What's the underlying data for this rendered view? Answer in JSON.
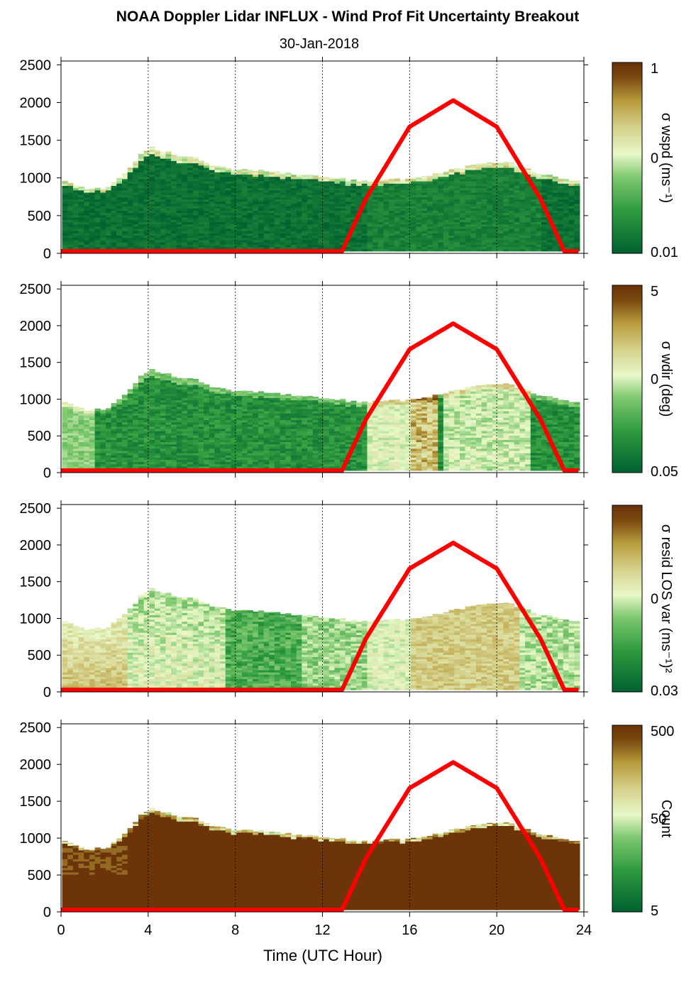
{
  "title": "NOAA Doppler Lidar INFLUX - Wind Prof Fit Uncertainty Breakout",
  "subtitle": "30-Jan-2018",
  "xlabel": "Time (UTC Hour)",
  "colors": {
    "sun_curve": "#ff0000",
    "colormap": [
      "#006030",
      "#2e9a3e",
      "#7fc870",
      "#e8f8c8",
      "#d4d08a",
      "#b89a3c",
      "#7a4a10",
      "#6a3108"
    ]
  },
  "chart_data": [
    {
      "type": "heatmap",
      "panel": "wspd",
      "xlim": [
        0,
        24
      ],
      "ylim": [
        0,
        2550
      ],
      "x_ticks": [
        "0",
        "4",
        "8",
        "12",
        "16",
        "20",
        "24"
      ],
      "y_ticks": [
        "0",
        "500",
        "1000",
        "1500",
        "2000",
        "2500"
      ],
      "grid": "vertical dotted at 4-hour intervals",
      "colorbar": {
        "label": "σ wspd (ms⁻¹)",
        "ticks": [
          "1",
          "0",
          "0.01"
        ],
        "scale": "log"
      },
      "data_top_m": [
        [
          0,
          950
        ],
        [
          1,
          850
        ],
        [
          2,
          870
        ],
        [
          3,
          1100
        ],
        [
          3.5,
          1300
        ],
        [
          4,
          1400
        ],
        [
          5,
          1320
        ],
        [
          6,
          1270
        ],
        [
          7,
          1150
        ],
        [
          8,
          1100
        ],
        [
          10,
          1080
        ],
        [
          12,
          1000
        ],
        [
          14,
          960
        ],
        [
          16,
          1000
        ],
        [
          18,
          1120
        ],
        [
          20,
          1220
        ],
        [
          21,
          1150
        ],
        [
          22,
          1050
        ],
        [
          23.8,
          950
        ]
      ],
      "sun_elevation_curve": [
        [
          0,
          0
        ],
        [
          12.9,
          0
        ],
        [
          14,
          700
        ],
        [
          16,
          1650
        ],
        [
          18,
          2000
        ],
        [
          20,
          1650
        ],
        [
          22,
          700
        ],
        [
          23.1,
          0
        ],
        [
          23.8,
          0
        ]
      ]
    },
    {
      "type": "heatmap",
      "panel": "wdir",
      "xlim": [
        0,
        24
      ],
      "ylim": [
        0,
        2550
      ],
      "x_ticks": [
        "0",
        "4",
        "8",
        "12",
        "16",
        "20",
        "24"
      ],
      "y_ticks": [
        "0",
        "500",
        "1000",
        "1500",
        "2000",
        "2500"
      ],
      "grid": "vertical dotted at 4-hour intervals",
      "colorbar": {
        "label": "σ wdir (deg)",
        "ticks": [
          "5",
          "0",
          "0.05"
        ],
        "scale": "log"
      },
      "data_top_m": [
        [
          0,
          950
        ],
        [
          1,
          850
        ],
        [
          2,
          870
        ],
        [
          3,
          1100
        ],
        [
          3.5,
          1300
        ],
        [
          4,
          1400
        ],
        [
          5,
          1320
        ],
        [
          6,
          1270
        ],
        [
          7,
          1150
        ],
        [
          8,
          1100
        ],
        [
          10,
          1080
        ],
        [
          12,
          1000
        ],
        [
          14,
          960
        ],
        [
          16,
          1000
        ],
        [
          18,
          1120
        ],
        [
          20,
          1220
        ],
        [
          21,
          1150
        ],
        [
          22,
          1050
        ],
        [
          23.8,
          950
        ]
      ],
      "sun_elevation_curve": [
        [
          0,
          0
        ],
        [
          12.9,
          0
        ],
        [
          14,
          700
        ],
        [
          16,
          1650
        ],
        [
          18,
          2000
        ],
        [
          20,
          1650
        ],
        [
          22,
          700
        ],
        [
          23.1,
          0
        ],
        [
          23.8,
          0
        ]
      ]
    },
    {
      "type": "heatmap",
      "panel": "resid",
      "xlim": [
        0,
        24
      ],
      "ylim": [
        0,
        2550
      ],
      "x_ticks": [
        "0",
        "4",
        "8",
        "12",
        "16",
        "20",
        "24"
      ],
      "y_ticks": [
        "0",
        "500",
        "1000",
        "1500",
        "2000",
        "2500"
      ],
      "grid": "vertical dotted at 4-hour intervals",
      "colorbar": {
        "label": "σ resid LOS var (ms⁻¹)²",
        "ticks": [
          "0",
          "0.03"
        ],
        "scale": "log"
      },
      "data_top_m": [
        [
          0,
          950
        ],
        [
          1,
          850
        ],
        [
          2,
          870
        ],
        [
          3,
          1100
        ],
        [
          3.5,
          1300
        ],
        [
          4,
          1400
        ],
        [
          5,
          1320
        ],
        [
          6,
          1270
        ],
        [
          7,
          1150
        ],
        [
          8,
          1100
        ],
        [
          10,
          1080
        ],
        [
          12,
          1000
        ],
        [
          14,
          960
        ],
        [
          16,
          1000
        ],
        [
          18,
          1120
        ],
        [
          20,
          1220
        ],
        [
          21,
          1150
        ],
        [
          22,
          1050
        ],
        [
          23.8,
          950
        ]
      ],
      "sun_elevation_curve": [
        [
          0,
          0
        ],
        [
          12.9,
          0
        ],
        [
          14,
          700
        ],
        [
          16,
          1650
        ],
        [
          18,
          2000
        ],
        [
          20,
          1650
        ],
        [
          22,
          700
        ],
        [
          23.1,
          0
        ],
        [
          23.8,
          0
        ]
      ]
    },
    {
      "type": "heatmap",
      "panel": "count",
      "xlim": [
        0,
        24
      ],
      "ylim": [
        0,
        2550
      ],
      "x_ticks": [
        "0",
        "4",
        "8",
        "12",
        "16",
        "20",
        "24"
      ],
      "y_ticks": [
        "0",
        "500",
        "1000",
        "1500",
        "2000",
        "2500"
      ],
      "grid": "vertical dotted at 4-hour intervals",
      "colorbar": {
        "label": "Count",
        "ticks": [
          "500",
          "50",
          "5"
        ],
        "scale": "log"
      },
      "data_top_m": [
        [
          0,
          950
        ],
        [
          1,
          850
        ],
        [
          2,
          870
        ],
        [
          3,
          1100
        ],
        [
          3.5,
          1300
        ],
        [
          4,
          1400
        ],
        [
          5,
          1320
        ],
        [
          6,
          1270
        ],
        [
          7,
          1150
        ],
        [
          8,
          1100
        ],
        [
          10,
          1080
        ],
        [
          12,
          1000
        ],
        [
          14,
          960
        ],
        [
          16,
          1000
        ],
        [
          18,
          1120
        ],
        [
          20,
          1220
        ],
        [
          21,
          1150
        ],
        [
          22,
          1050
        ],
        [
          23.8,
          950
        ]
      ],
      "sun_elevation_curve": [
        [
          0,
          0
        ],
        [
          12.9,
          0
        ],
        [
          14,
          700
        ],
        [
          16,
          1650
        ],
        [
          18,
          2000
        ],
        [
          20,
          1650
        ],
        [
          22,
          700
        ],
        [
          23.1,
          0
        ],
        [
          23.8,
          0
        ]
      ]
    }
  ]
}
